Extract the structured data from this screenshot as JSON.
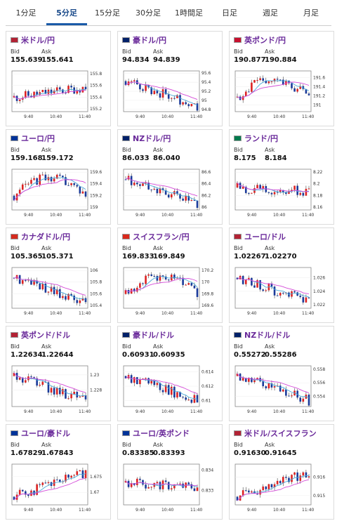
{
  "tabs": [
    "1分足",
    "5分足",
    "15分足",
    "30分足",
    "1時間足",
    "日足",
    "週足",
    "月足"
  ],
  "active_tab": 1,
  "labels": {
    "bid": "Bid",
    "ask": "Ask"
  },
  "x_ticks": [
    "9:40",
    "10:40",
    "11:40"
  ],
  "pairs": [
    {
      "name": "米ドル/円",
      "flag_color": "#b22234",
      "bid": "155.639",
      "ask": "155.641",
      "y_ticks": [
        "155.8",
        "155.6",
        "155.4",
        "155.2"
      ],
      "ylim": [
        155.15,
        155.85
      ],
      "trend": "flat-up"
    },
    {
      "name": "豪ドル/円",
      "flag_color": "#012169",
      "bid": "94.834",
      "ask": "94.839",
      "y_ticks": [
        "95.6",
        "95.4",
        "95.2",
        "95",
        "94.8"
      ],
      "ylim": [
        94.75,
        95.65
      ],
      "trend": "down"
    },
    {
      "name": "英ポンド/円",
      "flag_color": "#c8102e",
      "bid": "190.877",
      "ask": "190.884",
      "y_ticks": [
        "191.6",
        "191.4",
        "191.2",
        "191"
      ],
      "ylim": [
        190.85,
        191.75
      ],
      "trend": "up-down"
    },
    {
      "name": "ユーロ/円",
      "flag_color": "#003399",
      "bid": "159.168",
      "ask": "159.172",
      "y_ticks": [
        "159.6",
        "159.4",
        "159.2",
        "159"
      ],
      "ylim": [
        158.95,
        159.65
      ],
      "trend": "up-down"
    },
    {
      "name": "NZドル/円",
      "flag_color": "#012169",
      "bid": "86.033",
      "ask": "86.040",
      "y_ticks": [
        "86.6",
        "86.4",
        "86.2",
        "86"
      ],
      "ylim": [
        85.95,
        86.65
      ],
      "trend": "down"
    },
    {
      "name": "ランド/円",
      "flag_color": "#007a4d",
      "bid": "8.175",
      "ask": "8.184",
      "y_ticks": [
        "8.22",
        "8.2",
        "8.18",
        "8.16"
      ],
      "ylim": [
        8.155,
        8.225
      ],
      "trend": "flat"
    },
    {
      "name": "カナダドル/円",
      "flag_color": "#d52b1e",
      "bid": "105.365",
      "ask": "105.371",
      "y_ticks": [
        "106",
        "105.8",
        "105.6",
        "105.4"
      ],
      "ylim": [
        105.35,
        106.05
      ],
      "trend": "down"
    },
    {
      "name": "スイスフラン/円",
      "flag_color": "#da291c",
      "bid": "169.833",
      "ask": "169.849",
      "y_ticks": [
        "170.2",
        "170",
        "169.8",
        "169.6"
      ],
      "ylim": [
        169.55,
        170.25
      ],
      "trend": "up-down"
    },
    {
      "name": "ユーロ/ドル",
      "flag_color": "#b22234",
      "bid": "1.02267",
      "ask": "1.02270",
      "y_ticks": [
        "1.026",
        "1.024",
        "1.022"
      ],
      "ylim": [
        1.0215,
        1.0275
      ],
      "trend": "down"
    },
    {
      "name": "英ポンド/ドル",
      "flag_color": "#b22234",
      "bid": "1.22634",
      "ask": "1.22644",
      "y_ticks": [
        "1.23",
        "1.228"
      ],
      "ylim": [
        1.2258,
        1.2312
      ],
      "trend": "down"
    },
    {
      "name": "豪ドル/ドル",
      "flag_color": "#012169",
      "bid": "0.60931",
      "ask": "0.60935",
      "y_ticks": [
        "0.614",
        "0.612",
        "0.61"
      ],
      "ylim": [
        0.6092,
        0.6148
      ],
      "trend": "down"
    },
    {
      "name": "NZドル/ドル",
      "flag_color": "#012169",
      "bid": "0.55272",
      "ask": "0.55286",
      "y_ticks": [
        "0.558",
        "0.556",
        "0.554"
      ],
      "ylim": [
        0.5525,
        0.5585
      ],
      "trend": "down"
    },
    {
      "name": "ユーロ/豪ドル",
      "flag_color": "#003399",
      "bid": "1.67829",
      "ask": "1.67843",
      "y_ticks": [
        "1.675",
        "1.67"
      ],
      "ylim": [
        1.666,
        1.679
      ],
      "trend": "up"
    },
    {
      "name": "ユーロ/英ポンド",
      "flag_color": "#003399",
      "bid": "0.83385",
      "ask": "0.83393",
      "y_ticks": [
        "0.834",
        "0.833"
      ],
      "ylim": [
        0.8323,
        0.8343
      ],
      "trend": "flat"
    },
    {
      "name": "米ドル/スイスフラン",
      "flag_color": "#b22234",
      "bid": "0.91630",
      "ask": "0.91645",
      "y_ticks": [
        "0.916",
        "0.915"
      ],
      "ylim": [
        0.9145,
        0.9167
      ],
      "trend": "up"
    }
  ]
}
